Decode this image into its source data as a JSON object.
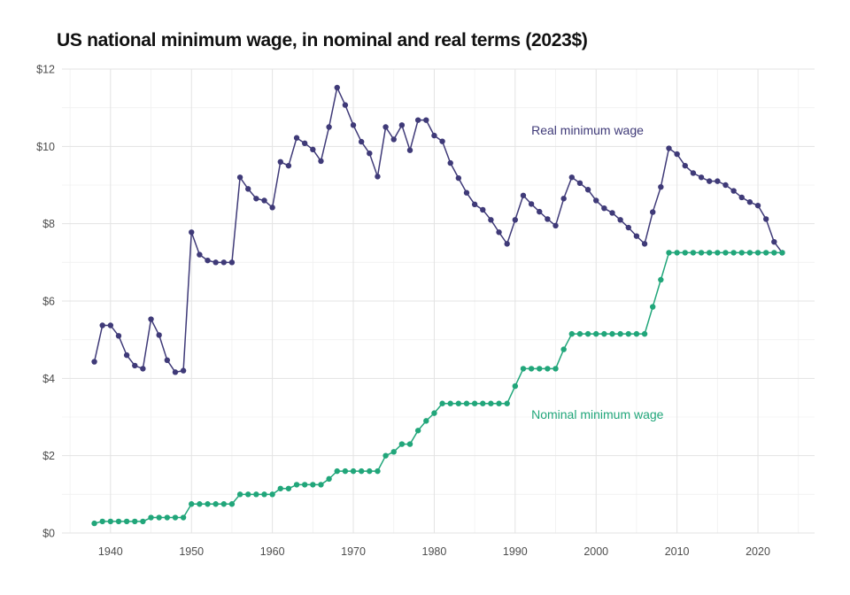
{
  "chart_data": {
    "type": "line",
    "title": "US national minimum wage, in nominal and real terms (2023$)",
    "xlabel": "",
    "ylabel": "",
    "xlim": [
      1934,
      2027
    ],
    "ylim": [
      0,
      12
    ],
    "x_ticks": [
      1940,
      1950,
      1960,
      1970,
      1980,
      1990,
      2000,
      2010,
      2020
    ],
    "y_ticks": [
      0,
      2,
      4,
      6,
      8,
      10,
      12
    ],
    "y_tick_labels": [
      "$0",
      "$2",
      "$4",
      "$6",
      "$8",
      "$10",
      "$12"
    ],
    "grid": true,
    "legend": "none",
    "annotations": [
      {
        "text": "Real minimum wage",
        "x": 1992,
        "y": 10.3,
        "series": "real"
      },
      {
        "text": "Nominal minimum wage",
        "x": 1992,
        "y": 2.95,
        "series": "nominal"
      }
    ],
    "colors": {
      "real": "#3f3a78",
      "nominal": "#21a67a",
      "grid": "#e3e3e3",
      "title": "#111111",
      "tick": "#4d4d4d"
    },
    "x": [
      1938,
      1939,
      1940,
      1941,
      1942,
      1943,
      1944,
      1945,
      1946,
      1947,
      1948,
      1949,
      1950,
      1951,
      1952,
      1953,
      1954,
      1955,
      1956,
      1957,
      1958,
      1959,
      1960,
      1961,
      1962,
      1963,
      1964,
      1965,
      1966,
      1967,
      1968,
      1969,
      1970,
      1971,
      1972,
      1973,
      1974,
      1975,
      1976,
      1977,
      1978,
      1979,
      1980,
      1981,
      1982,
      1983,
      1984,
      1985,
      1986,
      1987,
      1988,
      1989,
      1990,
      1991,
      1992,
      1993,
      1994,
      1995,
      1996,
      1997,
      1998,
      1999,
      2000,
      2001,
      2002,
      2003,
      2004,
      2005,
      2006,
      2007,
      2008,
      2009,
      2010,
      2011,
      2012,
      2013,
      2014,
      2015,
      2016,
      2017,
      2018,
      2019,
      2020,
      2021,
      2022,
      2023
    ],
    "series": [
      {
        "key": "real",
        "values": [
          4.43,
          5.37,
          5.37,
          5.1,
          4.6,
          4.33,
          4.25,
          5.53,
          5.12,
          4.47,
          4.16,
          4.2,
          7.78,
          7.2,
          7.05,
          7.0,
          7.0,
          7.0,
          9.2,
          8.9,
          8.65,
          8.6,
          8.42,
          9.6,
          9.5,
          10.22,
          10.08,
          9.92,
          9.62,
          10.5,
          11.52,
          11.07,
          10.55,
          10.12,
          9.82,
          9.22,
          10.5,
          10.18,
          10.55,
          9.9,
          10.68,
          10.68,
          10.28,
          10.13,
          9.57,
          9.18,
          8.8,
          8.5,
          8.36,
          8.1,
          7.78,
          7.48,
          8.1,
          8.73,
          8.51,
          8.31,
          8.12,
          7.95,
          8.65,
          9.2,
          9.05,
          8.88,
          8.6,
          8.4,
          8.28,
          8.1,
          7.9,
          7.68,
          7.48,
          8.3,
          8.95,
          9.95,
          9.8,
          9.5,
          9.31,
          9.2,
          9.1,
          9.1,
          9.0,
          8.85,
          8.68,
          8.56,
          8.47,
          8.12,
          7.53,
          7.25
        ]
      },
      {
        "key": "nominal",
        "values": [
          0.25,
          0.3,
          0.3,
          0.3,
          0.3,
          0.3,
          0.3,
          0.4,
          0.4,
          0.4,
          0.4,
          0.4,
          0.75,
          0.75,
          0.75,
          0.75,
          0.75,
          0.75,
          1.0,
          1.0,
          1.0,
          1.0,
          1.0,
          1.15,
          1.15,
          1.25,
          1.25,
          1.25,
          1.25,
          1.4,
          1.6,
          1.6,
          1.6,
          1.6,
          1.6,
          1.6,
          2.0,
          2.1,
          2.3,
          2.3,
          2.65,
          2.9,
          3.1,
          3.35,
          3.35,
          3.35,
          3.35,
          3.35,
          3.35,
          3.35,
          3.35,
          3.35,
          3.8,
          4.25,
          4.25,
          4.25,
          4.25,
          4.25,
          4.75,
          5.15,
          5.15,
          5.15,
          5.15,
          5.15,
          5.15,
          5.15,
          5.15,
          5.15,
          5.15,
          5.85,
          6.55,
          7.25,
          7.25,
          7.25,
          7.25,
          7.25,
          7.25,
          7.25,
          7.25,
          7.25,
          7.25,
          7.25,
          7.25,
          7.25,
          7.25,
          7.25
        ]
      }
    ]
  }
}
